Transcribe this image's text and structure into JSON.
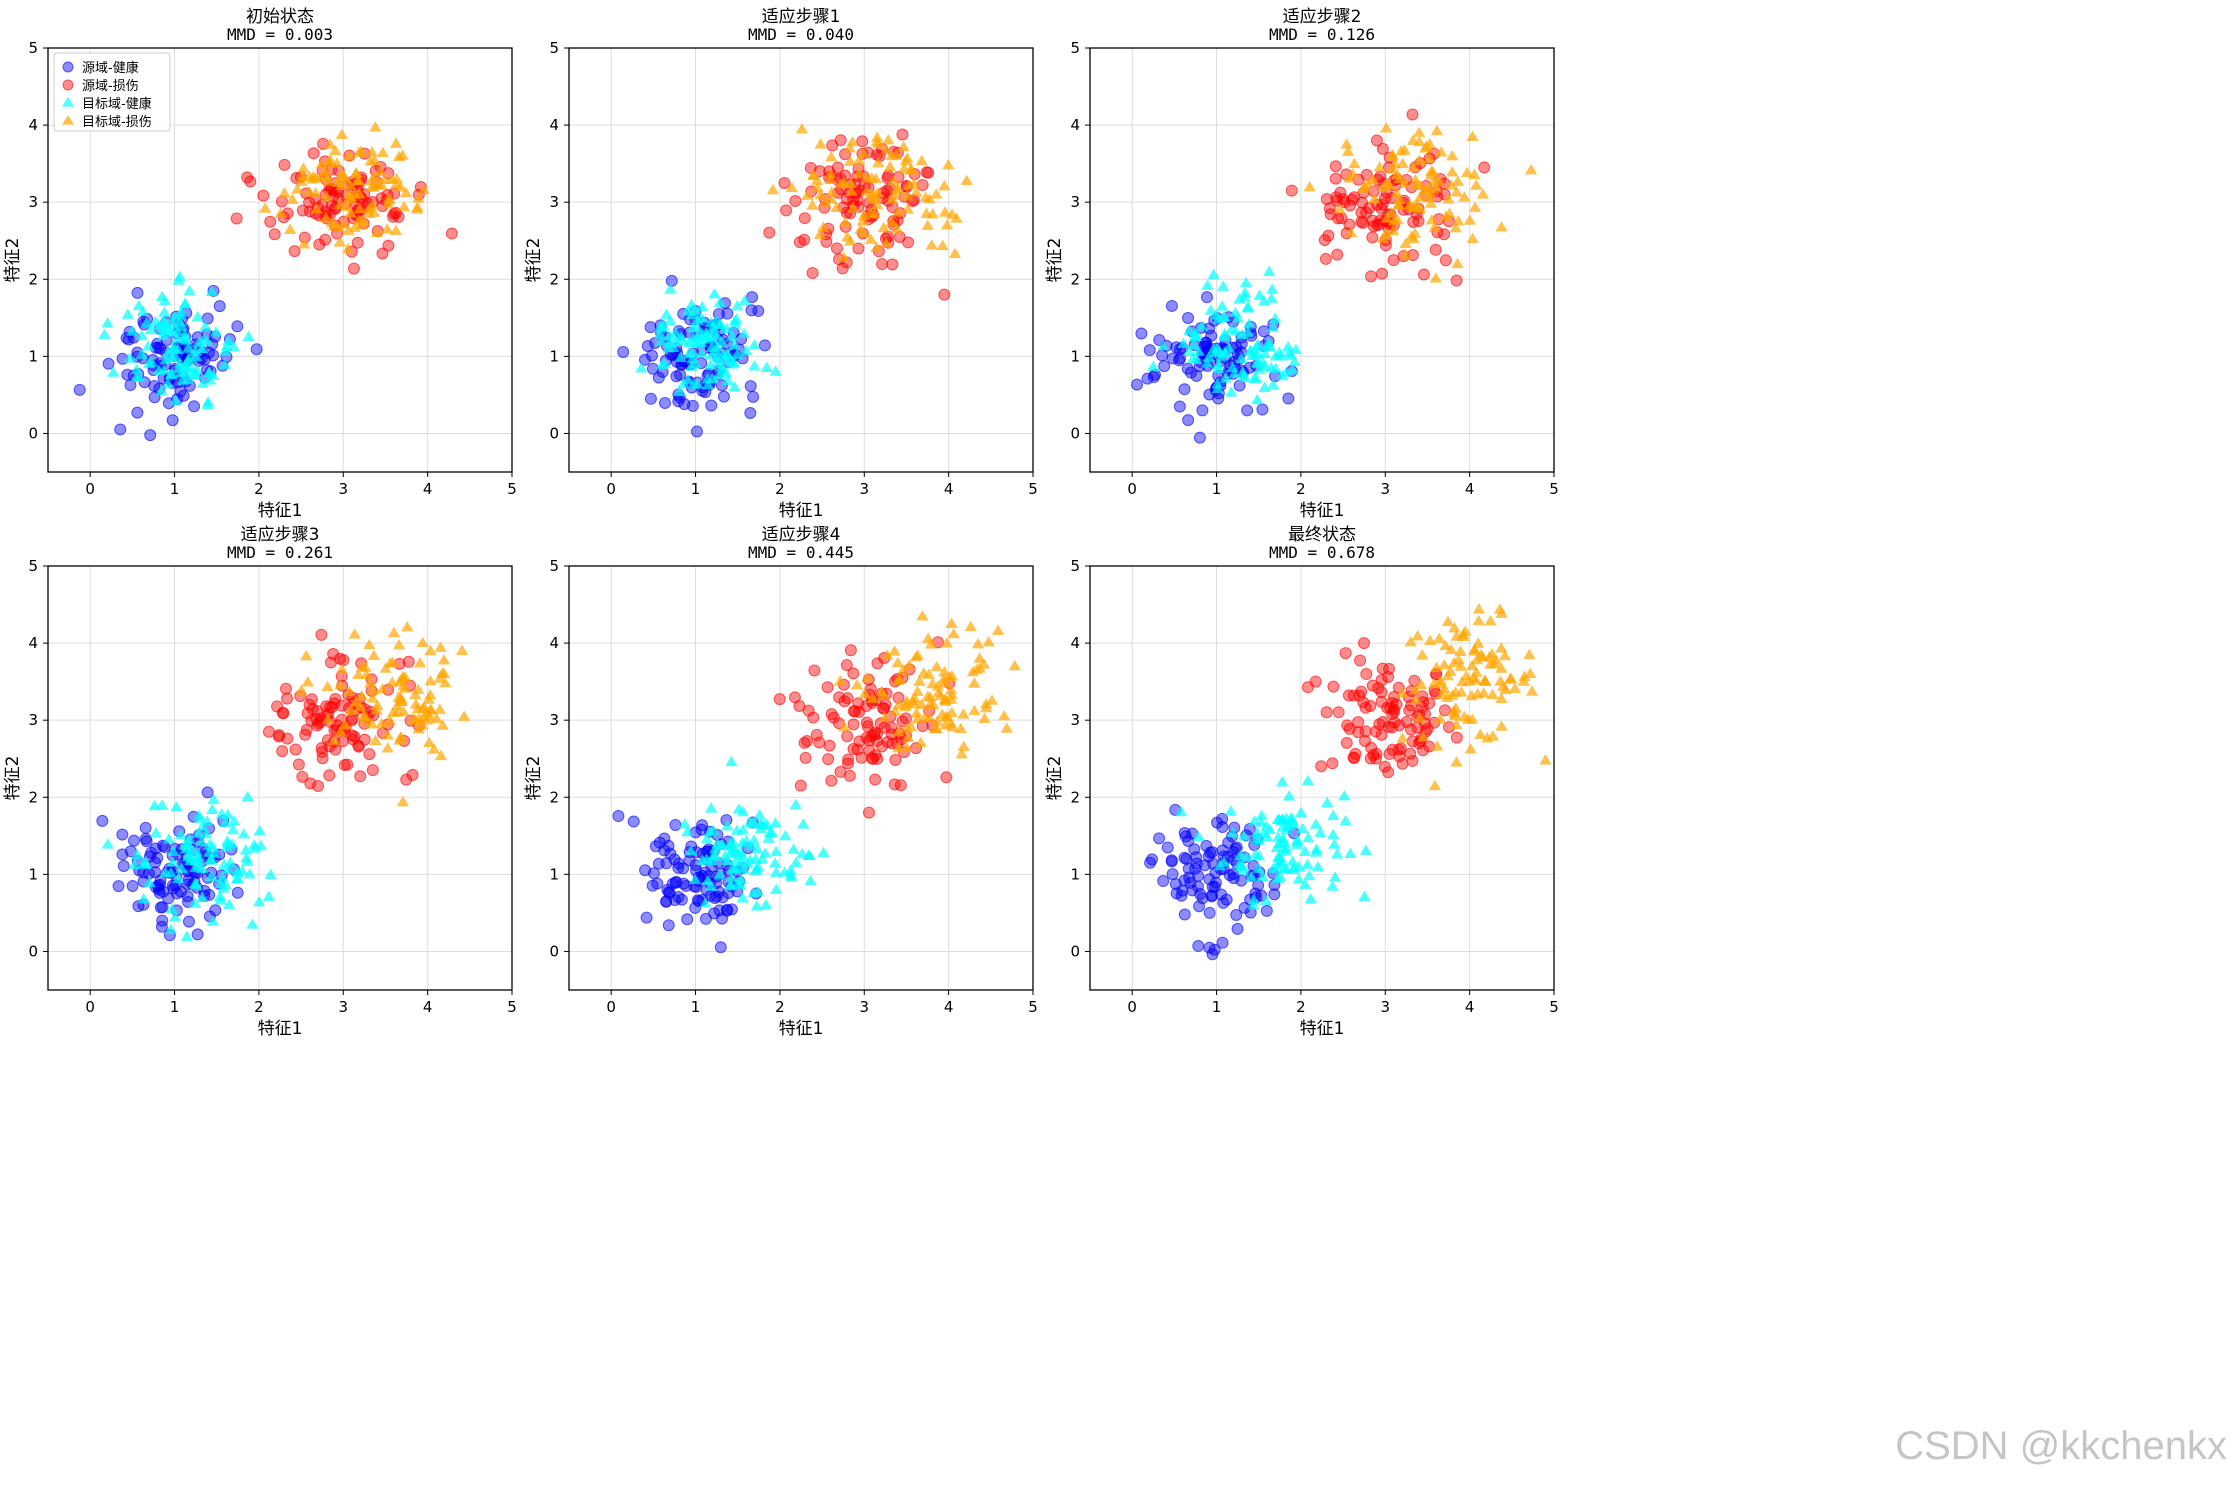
{
  "figure": {
    "watermark": "CSDN @kkchenkx",
    "legend": {
      "placement": "top-left",
      "entries": [
        {
          "label": "源域-健康",
          "marker": "circle",
          "color": "#0000ff"
        },
        {
          "label": "源域-损伤",
          "marker": "circle",
          "color": "#ff0000"
        },
        {
          "label": "目标域-健康",
          "marker": "triangle",
          "color": "#00ffff"
        },
        {
          "label": "目标域-损伤",
          "marker": "triangle",
          "color": "#ffa500"
        }
      ]
    }
  },
  "chart_data": [
    {
      "type": "scatter",
      "title": "初始状态",
      "subtitle": "MMD = 0.003",
      "xlabel": "特征1",
      "ylabel": "特征2",
      "xlim": [
        -0.5,
        5
      ],
      "ylim": [
        -0.5,
        5
      ],
      "xticks": [
        0,
        1,
        2,
        3,
        4,
        5
      ],
      "yticks": [
        0,
        1,
        2,
        3,
        4,
        5
      ],
      "grid": true,
      "clusters": [
        {
          "series": "源域-健康",
          "center": [
            1.0,
            1.0
          ],
          "spread": [
            0.35,
            0.35
          ]
        },
        {
          "series": "源域-损伤",
          "center": [
            3.0,
            3.0
          ],
          "spread": [
            0.4,
            0.4
          ]
        },
        {
          "series": "目标域-健康",
          "center": [
            1.0,
            1.05
          ],
          "spread": [
            0.35,
            0.35
          ]
        },
        {
          "series": "目标域-损伤",
          "center": [
            3.1,
            3.05
          ],
          "spread": [
            0.4,
            0.4
          ]
        }
      ]
    },
    {
      "type": "scatter",
      "title": "适应步骤1",
      "subtitle": "MMD = 0.040",
      "xlabel": "特征1",
      "ylabel": "特征2",
      "xlim": [
        -0.5,
        5
      ],
      "ylim": [
        -0.5,
        5
      ],
      "xticks": [
        0,
        1,
        2,
        3,
        4,
        5
      ],
      "yticks": [
        0,
        1,
        2,
        3,
        4,
        5
      ],
      "grid": true,
      "clusters": [
        {
          "series": "源域-健康",
          "center": [
            1.0,
            1.0
          ],
          "spread": [
            0.35,
            0.35
          ]
        },
        {
          "series": "源域-损伤",
          "center": [
            3.0,
            3.0
          ],
          "spread": [
            0.4,
            0.4
          ]
        },
        {
          "series": "目标域-健康",
          "center": [
            1.1,
            1.1
          ],
          "spread": [
            0.35,
            0.35
          ]
        },
        {
          "series": "目标域-损伤",
          "center": [
            3.2,
            3.1
          ],
          "spread": [
            0.4,
            0.4
          ]
        }
      ]
    },
    {
      "type": "scatter",
      "title": "适应步骤2",
      "subtitle": "MMD = 0.126",
      "xlabel": "特征1",
      "ylabel": "特征2",
      "xlim": [
        -0.5,
        5
      ],
      "ylim": [
        -0.5,
        5
      ],
      "xticks": [
        0,
        1,
        2,
        3,
        4,
        5
      ],
      "yticks": [
        0,
        1,
        2,
        3,
        4,
        5
      ],
      "grid": true,
      "clusters": [
        {
          "series": "源域-健康",
          "center": [
            1.0,
            1.0
          ],
          "spread": [
            0.35,
            0.35
          ]
        },
        {
          "series": "源域-损伤",
          "center": [
            3.0,
            3.0
          ],
          "spread": [
            0.4,
            0.4
          ]
        },
        {
          "series": "目标域-健康",
          "center": [
            1.25,
            1.15
          ],
          "spread": [
            0.35,
            0.35
          ]
        },
        {
          "series": "目标域-损伤",
          "center": [
            3.4,
            3.2
          ],
          "spread": [
            0.4,
            0.4
          ]
        }
      ]
    },
    {
      "type": "scatter",
      "title": "适应步骤3",
      "subtitle": "MMD = 0.261",
      "xlabel": "特征1",
      "ylabel": "特征2",
      "xlim": [
        -0.5,
        5
      ],
      "ylim": [
        -0.5,
        5
      ],
      "xticks": [
        0,
        1,
        2,
        3,
        4,
        5
      ],
      "yticks": [
        0,
        1,
        2,
        3,
        4,
        5
      ],
      "grid": true,
      "clusters": [
        {
          "series": "源域-健康",
          "center": [
            1.0,
            1.0
          ],
          "spread": [
            0.35,
            0.35
          ]
        },
        {
          "series": "源域-损伤",
          "center": [
            3.0,
            3.0
          ],
          "spread": [
            0.4,
            0.4
          ]
        },
        {
          "series": "目标域-健康",
          "center": [
            1.4,
            1.2
          ],
          "spread": [
            0.35,
            0.35
          ]
        },
        {
          "series": "目标域-损伤",
          "center": [
            3.6,
            3.3
          ],
          "spread": [
            0.4,
            0.4
          ]
        }
      ]
    },
    {
      "type": "scatter",
      "title": "适应步骤4",
      "subtitle": "MMD = 0.445",
      "xlabel": "特征1",
      "ylabel": "特征2",
      "xlim": [
        -0.5,
        5
      ],
      "ylim": [
        -0.5,
        5
      ],
      "xticks": [
        0,
        1,
        2,
        3,
        4,
        5
      ],
      "yticks": [
        0,
        1,
        2,
        3,
        4,
        5
      ],
      "grid": true,
      "clusters": [
        {
          "series": "源域-健康",
          "center": [
            1.0,
            1.0
          ],
          "spread": [
            0.35,
            0.35
          ]
        },
        {
          "series": "源域-损伤",
          "center": [
            3.0,
            3.0
          ],
          "spread": [
            0.4,
            0.4
          ]
        },
        {
          "series": "目标域-健康",
          "center": [
            1.6,
            1.3
          ],
          "spread": [
            0.35,
            0.35
          ]
        },
        {
          "series": "目标域-损伤",
          "center": [
            3.8,
            3.4
          ],
          "spread": [
            0.4,
            0.4
          ]
        }
      ]
    },
    {
      "type": "scatter",
      "title": "最终状态",
      "subtitle": "MMD = 0.678",
      "xlabel": "特征1",
      "ylabel": "特征2",
      "xlim": [
        -0.5,
        5
      ],
      "ylim": [
        -0.5,
        5
      ],
      "xticks": [
        0,
        1,
        2,
        3,
        4,
        5
      ],
      "yticks": [
        0,
        1,
        2,
        3,
        4,
        5
      ],
      "grid": true,
      "clusters": [
        {
          "series": "源域-健康",
          "center": [
            1.0,
            1.0
          ],
          "spread": [
            0.35,
            0.35
          ]
        },
        {
          "series": "源域-损伤",
          "center": [
            3.0,
            3.0
          ],
          "spread": [
            0.4,
            0.4
          ]
        },
        {
          "series": "目标域-健康",
          "center": [
            1.8,
            1.4
          ],
          "spread": [
            0.35,
            0.35
          ]
        },
        {
          "series": "目标域-损伤",
          "center": [
            4.0,
            3.5
          ],
          "spread": [
            0.4,
            0.4
          ]
        }
      ]
    }
  ]
}
